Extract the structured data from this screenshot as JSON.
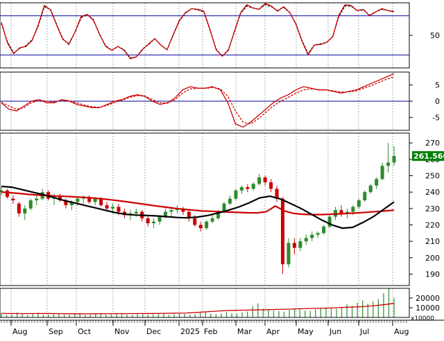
{
  "colors": {
    "background": "#ffffff",
    "grid": "#8c8c8c",
    "axis": "#000000",
    "ref_line": "#0000a0",
    "ema_fast": "#cc0000",
    "ema_slow": "#000000",
    "candle_up": "#2e8b2e",
    "candle_down": "#cc0000",
    "volume": "#4c9a4c",
    "price_badge": "#008000"
  },
  "chart_data": [
    {
      "type": "line",
      "panel": "stochastic",
      "y_ticks": [
        50
      ],
      "ylim": [
        0,
        100
      ],
      "reference_lines": [
        80,
        20
      ],
      "series": [
        {
          "values": [
            70,
            38,
            22,
            31,
            33,
            42,
            66,
            96,
            89,
            66,
            44,
            37,
            55,
            79,
            82,
            73,
            52,
            33,
            27,
            33,
            27,
            14,
            17,
            28,
            37,
            45,
            35,
            28,
            51,
            73,
            85,
            91,
            90,
            87,
            59,
            28,
            18,
            27,
            57,
            85,
            97,
            92,
            90,
            99,
            95,
            87,
            94,
            85,
            67,
            41,
            20,
            35,
            36,
            39,
            48,
            81,
            97,
            96,
            88,
            90,
            80,
            86,
            91,
            88,
            86
          ]
        },
        {
          "values": [
            68,
            40,
            23,
            30,
            34,
            43,
            64,
            94,
            90,
            67,
            45,
            36,
            55,
            77,
            82,
            74,
            51,
            34,
            27,
            33,
            28,
            15,
            17,
            29,
            36,
            45,
            35,
            28,
            50,
            72,
            84,
            91,
            89,
            86,
            58,
            29,
            18,
            28,
            56,
            84,
            95,
            92,
            90,
            97,
            94,
            88,
            93,
            85,
            68,
            42,
            22,
            35,
            37,
            39,
            48,
            79,
            95,
            95,
            88,
            89,
            81,
            86,
            90,
            88,
            87
          ]
        }
      ]
    },
    {
      "type": "line",
      "panel": "macd",
      "y_ticks": [
        5,
        0,
        -5
      ],
      "ylim": [
        -9,
        9
      ],
      "reference_lines": [
        0
      ],
      "series": [
        {
          "values": [
            -0.5,
            -2.5,
            -3.0,
            -1.5,
            0.0,
            0.5,
            -0.5,
            -0.5,
            0.5,
            0.0,
            -1.0,
            -1.5,
            -2.0,
            -2.0,
            -1.0,
            0.0,
            0.5,
            1.5,
            2.0,
            1.5,
            0.0,
            -1.0,
            -0.5,
            1.0,
            3.5,
            4.5,
            4.0,
            4.0,
            4.5,
            3.5,
            -0.5,
            -7.0,
            -8.0,
            -6.5,
            -4.5,
            -2.5,
            -0.5,
            1.0,
            2.0,
            3.5,
            4.5,
            4.0,
            3.5,
            3.5,
            3.0,
            2.5,
            3.0,
            3.5,
            4.5,
            5.5,
            6.5,
            7.5,
            8.5
          ]
        },
        {
          "values": [
            -0.3,
            -1.5,
            -2.5,
            -2.0,
            -0.5,
            0.3,
            0.0,
            -0.3,
            0.3,
            0.2,
            -0.5,
            -1.2,
            -1.7,
            -1.9,
            -1.3,
            -0.4,
            0.3,
            1.2,
            1.7,
            1.6,
            0.5,
            -0.5,
            -0.6,
            0.5,
            2.5,
            3.8,
            4.0,
            4.0,
            4.2,
            3.8,
            1.5,
            -3.0,
            -6.5,
            -7.0,
            -5.5,
            -3.5,
            -1.5,
            0.0,
            1.2,
            2.5,
            3.5,
            3.8,
            3.6,
            3.5,
            3.2,
            2.8,
            2.9,
            3.2,
            4.0,
            4.8,
            5.8,
            6.8,
            7.5
          ]
        }
      ]
    },
    {
      "type": "candlestick",
      "panel": "price",
      "y_ticks": [
        270,
        260,
        250,
        240,
        230,
        220,
        210,
        200,
        190
      ],
      "ylim": [
        183,
        276
      ],
      "last_price_label": "261.5600",
      "candles": [
        [
          240,
          243,
          238,
          241
        ],
        [
          241,
          242,
          236,
          237
        ],
        [
          236,
          238,
          233,
          235
        ],
        [
          233,
          234,
          225,
          227
        ],
        [
          227,
          232,
          223,
          230
        ],
        [
          230,
          236,
          229,
          235
        ],
        [
          235,
          238,
          232,
          236
        ],
        [
          236,
          242,
          235,
          240
        ],
        [
          240,
          241,
          235,
          236
        ],
        [
          236,
          239,
          232,
          237
        ],
        [
          237,
          239,
          234,
          235
        ],
        [
          235,
          236,
          230,
          232
        ],
        [
          232,
          235,
          229,
          234
        ],
        [
          234,
          237,
          232,
          236
        ],
        [
          236,
          238,
          233,
          237
        ],
        [
          237,
          238,
          233,
          234
        ],
        [
          234,
          237,
          232,
          236
        ],
        [
          236,
          237,
          231,
          232
        ],
        [
          232,
          234,
          228,
          230
        ],
        [
          230,
          233,
          227,
          231
        ],
        [
          231,
          233,
          226,
          228
        ],
        [
          228,
          230,
          224,
          226
        ],
        [
          226,
          229,
          223,
          227
        ],
        [
          227,
          230,
          225,
          228
        ],
        [
          228,
          229,
          222,
          224
        ],
        [
          224,
          226,
          219,
          221
        ],
        [
          221,
          224,
          218,
          222
        ],
        [
          222,
          226,
          220,
          225
        ],
        [
          225,
          230,
          224,
          228
        ],
        [
          228,
          231,
          225,
          229
        ],
        [
          229,
          232,
          227,
          230
        ],
        [
          230,
          231,
          226,
          228
        ],
        [
          228,
          229,
          222,
          224
        ],
        [
          224,
          226,
          219,
          220
        ],
        [
          220,
          222,
          216,
          218
        ],
        [
          218,
          223,
          217,
          222
        ],
        [
          222,
          226,
          221,
          224
        ],
        [
          224,
          229,
          223,
          228
        ],
        [
          228,
          234,
          227,
          233
        ],
        [
          233,
          238,
          232,
          236
        ],
        [
          236,
          242,
          235,
          241
        ],
        [
          241,
          244,
          239,
          243
        ],
        [
          243,
          245,
          240,
          242
        ],
        [
          242,
          246,
          241,
          245
        ],
        [
          245,
          251,
          244,
          249
        ],
        [
          249,
          250,
          244,
          246
        ],
        [
          246,
          248,
          240,
          242
        ],
        [
          242,
          244,
          234,
          236
        ],
        [
          236,
          237,
          190,
          196
        ],
        [
          196,
          212,
          194,
          209
        ],
        [
          209,
          212,
          202,
          206
        ],
        [
          206,
          212,
          204,
          210
        ],
        [
          210,
          214,
          208,
          212
        ],
        [
          212,
          216,
          210,
          214
        ],
        [
          214,
          216,
          212,
          215
        ],
        [
          215,
          220,
          214,
          219
        ],
        [
          219,
          226,
          218,
          225
        ],
        [
          225,
          231,
          223,
          229
        ],
        [
          229,
          232,
          225,
          227
        ],
        [
          227,
          230,
          224,
          228
        ],
        [
          228,
          232,
          226,
          231
        ],
        [
          231,
          236,
          230,
          235
        ],
        [
          235,
          241,
          234,
          240
        ],
        [
          240,
          245,
          239,
          244
        ],
        [
          244,
          249,
          242,
          248
        ],
        [
          248,
          258,
          247,
          256
        ],
        [
          256,
          270,
          252,
          258
        ],
        [
          258,
          268,
          256,
          262
        ]
      ],
      "series": [
        {
          "type": "line",
          "values": [
            240,
            239.6,
            239.2,
            238.6,
            238.2,
            237.9,
            237.6,
            237.4,
            237.1,
            236.8,
            236.4,
            235.9,
            235.3,
            234.6,
            233.9,
            233.1,
            232.3,
            231.5,
            230.8,
            230.1,
            229.5,
            229.0,
            228.5,
            228.3,
            228.0,
            227.8,
            227.6,
            227.4,
            227.3,
            228.0,
            231.5,
            228.5,
            227.0,
            226.5,
            226.3,
            226.3,
            226.5,
            226.7,
            227.0,
            227.3,
            227.7,
            228.1,
            228.5,
            229.0
          ]
        },
        {
          "type": "line",
          "values": [
            243.5,
            243.0,
            241.5,
            240.0,
            238.5,
            236.8,
            235.0,
            233.5,
            232.0,
            230.5,
            229.0,
            227.5,
            226.5,
            226.0,
            225.8,
            225.5,
            225.0,
            224.5,
            224.3,
            224.8,
            225.8,
            227.3,
            229.0,
            231.0,
            233.5,
            236.5,
            237.5,
            235.8,
            233.0,
            230.0,
            226.5,
            223.0,
            220.0,
            218.0,
            218.5,
            221.5,
            225.0,
            229.5,
            234.0
          ]
        }
      ]
    },
    {
      "type": "bar",
      "panel": "volume",
      "y_ticks": [
        20000,
        10000
      ],
      "unit_label": "x10000",
      "ylim": [
        0,
        30000
      ],
      "values": [
        4500,
        2800,
        3200,
        5100,
        3900,
        2600,
        3400,
        4800,
        3100,
        2900,
        3600,
        4200,
        3300,
        2700,
        3800,
        4600,
        2500,
        3000,
        3500,
        4100,
        2800,
        3200,
        3900,
        4400,
        3000,
        2600,
        3700,
        4300,
        2900,
        3100,
        3800,
        4500,
        2700,
        3300,
        4000,
        3600,
        2800,
        3200,
        4700,
        5200,
        3900,
        3400,
        4100,
        5600,
        4300,
        3800,
        5000,
        6200,
        11500,
        14500,
        9000,
        8000,
        7000,
        6500,
        6000,
        7500,
        9500,
        8500,
        7000,
        6800,
        8200,
        9800,
        10500,
        9200,
        8800,
        11000,
        13500,
        12000,
        15000,
        17500,
        14000,
        16500,
        19000,
        25000,
        30000,
        20000
      ],
      "series": [
        {
          "type": "line",
          "name": "",
          "values": [
            4200,
            4000,
            3900,
            4000,
            4050,
            3950,
            3800,
            3750,
            3800,
            3850,
            3900,
            3950,
            4000,
            4100,
            4200,
            4400,
            4600,
            5200,
            6000,
            6800,
            7300,
            7500,
            7700,
            8000,
            8300,
            8600,
            9000,
            9300,
            9600,
            10000,
            10500,
            11000,
            11800,
            13000,
            14500
          ]
        }
      ]
    }
  ],
  "time_axis": {
    "labels": [
      "Aug",
      "Sep",
      "Oct",
      "Nov",
      "Dec",
      "2025",
      "Feb",
      "Mar",
      "Apr",
      "May",
      "Jun",
      "Jul",
      "Aug"
    ]
  }
}
